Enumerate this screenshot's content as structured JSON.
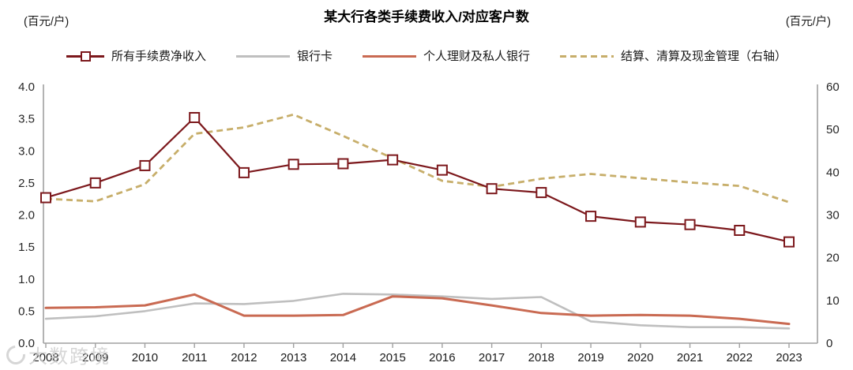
{
  "title": "某大行各类手续费收入/对应客户数",
  "unit_left": "(百元/户)",
  "unit_right": "(百元/户)",
  "watermark": "大数跨境",
  "colors": {
    "maroon": "#7c181c",
    "gray": "#bfbfbf",
    "terracotta": "#c96a52",
    "khaki": "#c7ae6a",
    "axis": "#a0a0a0",
    "tick_text": "#262626"
  },
  "chart_data": {
    "type": "line",
    "title": "某大行各类手续费收入/对应客户数",
    "categories": [
      "2008",
      "2009",
      "2010",
      "2011",
      "2012",
      "2013",
      "2014",
      "2015",
      "2016",
      "2017",
      "2018",
      "2019",
      "2020",
      "2021",
      "2022",
      "2023"
    ],
    "series": [
      {
        "name": "所有手续费净收入",
        "axis": "left",
        "color": "#7c181c",
        "style": "solid",
        "marker": "square",
        "values": [
          2.27,
          2.5,
          2.77,
          3.52,
          2.66,
          2.79,
          2.8,
          2.86,
          2.7,
          2.41,
          2.35,
          1.98,
          1.89,
          1.85,
          1.76,
          1.58
        ]
      },
      {
        "name": "银行卡",
        "axis": "left",
        "color": "#bfbfbf",
        "style": "solid",
        "marker": "none",
        "values": [
          0.38,
          0.42,
          0.5,
          0.62,
          0.61,
          0.66,
          0.77,
          0.76,
          0.73,
          0.69,
          0.72,
          0.34,
          0.28,
          0.25,
          0.25,
          0.23
        ]
      },
      {
        "name": "个人理财及私人银行",
        "axis": "left",
        "color": "#c96a52",
        "style": "solid",
        "marker": "none",
        "values": [
          0.55,
          0.56,
          0.59,
          0.76,
          0.43,
          0.43,
          0.44,
          0.73,
          0.7,
          0.59,
          0.47,
          0.43,
          0.44,
          0.43,
          0.38,
          0.3
        ]
      },
      {
        "name": "结算、清算及现金管理（右轴）",
        "axis": "right",
        "color": "#c7ae6a",
        "style": "dashed",
        "marker": "none",
        "values": [
          33.8,
          33.2,
          37.2,
          49.0,
          50.5,
          53.5,
          48.5,
          43.3,
          38.0,
          36.6,
          38.5,
          39.6,
          38.6,
          37.6,
          36.8,
          33.0
        ]
      }
    ],
    "left_axis": {
      "min": 0,
      "max": 4,
      "ticks": [
        "4.0",
        "3.5",
        "3.0",
        "2.5",
        "2.0",
        "1.5",
        "1.0",
        "0.5",
        "0.0"
      ]
    },
    "right_axis": {
      "min": 0,
      "max": 60,
      "ticks": [
        "60",
        "50",
        "40",
        "30",
        "20",
        "10",
        "0"
      ]
    },
    "xlabel": "",
    "ylabel_left": "(百元/户)",
    "ylabel_right": "(百元/户)",
    "legend_position": "top",
    "grid": false
  }
}
